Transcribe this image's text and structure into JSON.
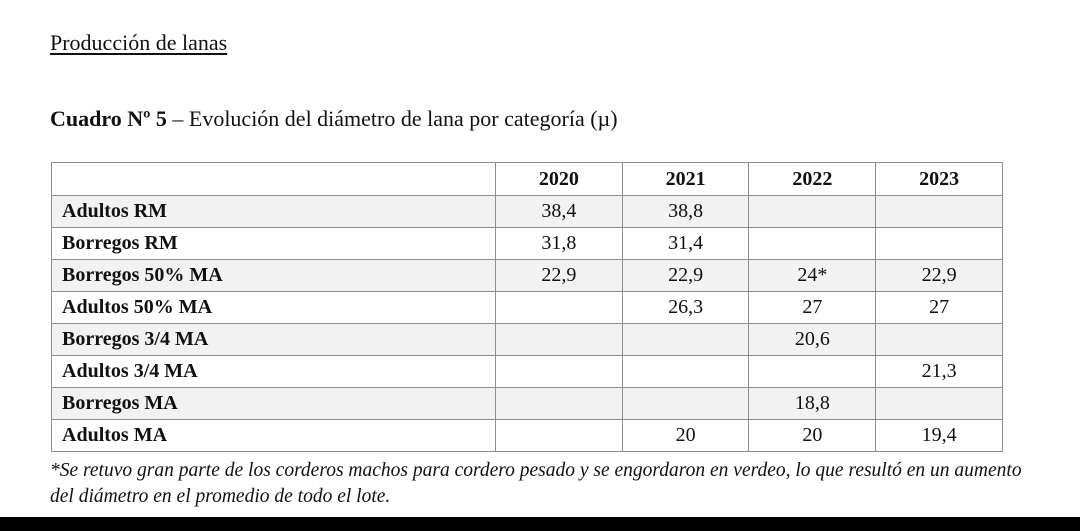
{
  "section_title": "Producción de lanas",
  "caption": {
    "label": "Cuadro Nº 5",
    "text": " – Evolución del diámetro de lana por categoría (µ)"
  },
  "table": {
    "headers": [
      "",
      "2020",
      "2021",
      "2022",
      "2023"
    ],
    "rows": [
      {
        "category": "Adultos RM",
        "values": [
          "38,4",
          "38,8",
          "",
          ""
        ]
      },
      {
        "category": "Borregos RM",
        "values": [
          "31,8",
          "31,4",
          "",
          ""
        ]
      },
      {
        "category": "Borregos 50% MA",
        "values": [
          "22,9",
          "22,9",
          "24*",
          "22,9"
        ]
      },
      {
        "category": "Adultos 50% MA",
        "values": [
          "",
          "26,3",
          "27",
          "27"
        ]
      },
      {
        "category": "Borregos 3/4 MA",
        "values": [
          "",
          "",
          "20,6",
          ""
        ]
      },
      {
        "category": "Adultos 3/4 MA",
        "values": [
          "",
          "",
          "",
          "21,3"
        ]
      },
      {
        "category": "Borregos MA",
        "values": [
          "",
          "",
          "18,8",
          ""
        ]
      },
      {
        "category": "Adultos MA",
        "values": [
          "",
          "20",
          "20",
          "19,4"
        ]
      }
    ]
  },
  "footnote": "*Se retuvo gran parte de los corderos machos para cordero pesado y se engordaron en verdeo, lo que resultó en un aumento del diámetro en el promedio de todo el lote."
}
